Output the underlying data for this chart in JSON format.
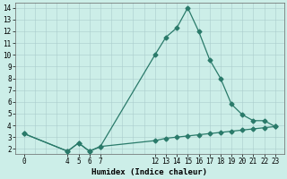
{
  "line1_x": [
    0,
    4,
    5,
    6,
    7,
    12,
    13,
    14,
    15,
    16,
    17,
    18,
    19,
    20,
    21,
    22,
    23
  ],
  "line1_y": [
    3.3,
    1.8,
    2.5,
    1.8,
    2.2,
    10.0,
    11.5,
    12.3,
    14.0,
    12.0,
    9.6,
    8.0,
    5.8,
    4.9,
    4.4,
    4.4,
    3.9
  ],
  "line2_x": [
    0,
    4,
    5,
    6,
    7,
    12,
    13,
    14,
    15,
    16,
    17,
    18,
    19,
    20,
    21,
    22,
    23
  ],
  "line2_y": [
    3.3,
    1.8,
    2.5,
    1.8,
    2.2,
    2.7,
    2.9,
    3.0,
    3.1,
    3.2,
    3.3,
    3.4,
    3.5,
    3.6,
    3.7,
    3.8,
    3.9
  ],
  "line_color": "#2a7a6a",
  "bg_color": "#cceee8",
  "grid_color": "#aacccc",
  "xlabel": "Humidex (Indice chaleur)",
  "xtick_labels": [
    "0",
    "4",
    "5",
    "6",
    "7",
    "12",
    "13",
    "14",
    "15",
    "16",
    "17",
    "18",
    "19",
    "20",
    "21",
    "22",
    "23"
  ],
  "xtick_pos": [
    0,
    4,
    5,
    6,
    7,
    12,
    13,
    14,
    15,
    16,
    17,
    18,
    19,
    20,
    21,
    22,
    23
  ],
  "ytick_labels": [
    "2",
    "3",
    "4",
    "5",
    "6",
    "7",
    "8",
    "9",
    "10",
    "11",
    "12",
    "13",
    "14"
  ],
  "ytick_pos": [
    2,
    3,
    4,
    5,
    6,
    7,
    8,
    9,
    10,
    11,
    12,
    13,
    14
  ],
  "ylim": [
    1.6,
    14.4
  ],
  "xlim": [
    -0.8,
    23.8
  ],
  "marker": "D",
  "markersize": 2.5,
  "linewidth": 0.9,
  "tick_fontsize": 5.5,
  "xlabel_fontsize": 6.5
}
